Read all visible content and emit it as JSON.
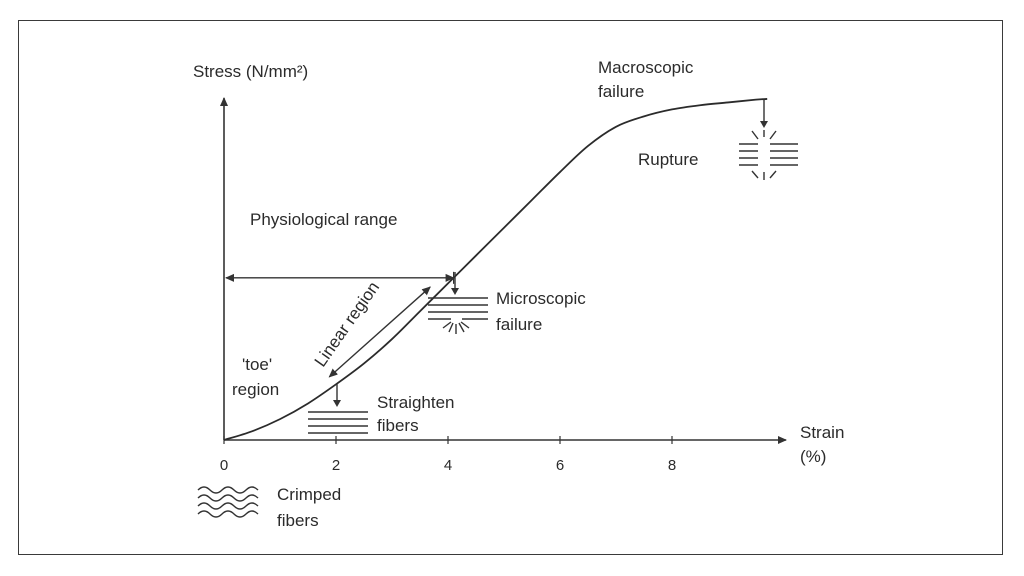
{
  "chart_data": {
    "type": "line",
    "ylabel": "Stress (N/mm²)",
    "xlabel_line1": "Strain",
    "xlabel_line2": "(%)",
    "xlim": [
      0,
      10
    ],
    "xticks": [
      "0",
      "2",
      "4",
      "6",
      "8"
    ],
    "xtick_values": [
      0,
      2,
      4,
      6,
      8
    ],
    "ylim": [
      0,
      1
    ],
    "grid": false,
    "curve": {
      "x": [
        0,
        0.5,
        1,
        1.5,
        2,
        2.5,
        3,
        3.5,
        4,
        4.5,
        5,
        5.5,
        6,
        6.5,
        7,
        7.5,
        8,
        8.5,
        9,
        9.5,
        9.7
      ],
      "y": [
        0,
        0.025,
        0.06,
        0.105,
        0.16,
        0.22,
        0.29,
        0.37,
        0.45,
        0.53,
        0.61,
        0.69,
        0.77,
        0.845,
        0.9,
        0.93,
        0.95,
        0.962,
        0.97,
        0.978,
        0.98
      ]
    },
    "physiological_range": {
      "label": "Physiological range",
      "x_end": 4.1
    },
    "linear_region": {
      "label": "Linear region",
      "x_start": 2,
      "x_end": 3.8
    },
    "annotations": {
      "toe_line1": "'toe'",
      "toe_line2": "region",
      "straighten_line1": "Straighten",
      "straighten_line2": "fibers",
      "micro_line1": "Microscopic",
      "micro_line2": "failure",
      "macro_line1": "Macroscopic",
      "macro_line2": "failure",
      "rupture": "Rupture",
      "crimped_line1": "Crimped",
      "crimped_line2": "fibers"
    }
  }
}
